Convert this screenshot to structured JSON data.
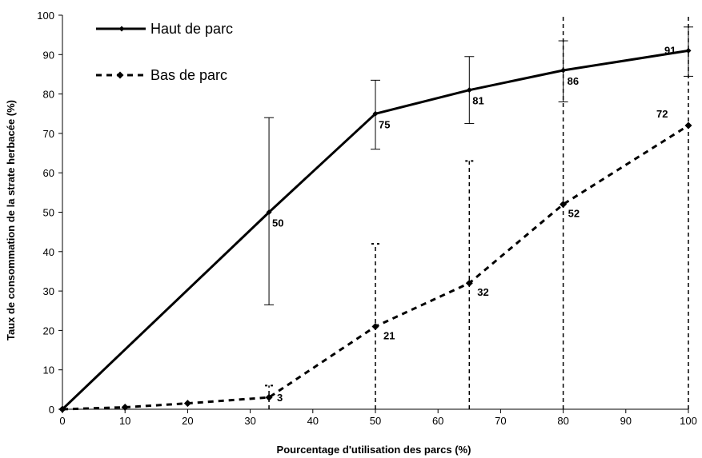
{
  "chart_data": {
    "type": "line",
    "xlabel": "Pourcentage d'utilisation des parcs (%)",
    "ylabel": "Taux de consommation de la strate herbacée (%)",
    "xlim": [
      0,
      100
    ],
    "ylim": [
      0,
      100
    ],
    "xticks": [
      0,
      10,
      20,
      30,
      40,
      50,
      60,
      70,
      80,
      90,
      100
    ],
    "yticks": [
      0,
      10,
      20,
      30,
      40,
      50,
      60,
      70,
      80,
      90,
      100
    ],
    "grid": false,
    "legend_position": "top-left",
    "series": [
      {
        "name": "Haut de parc",
        "style": "solid",
        "color": "#000000",
        "points": [
          {
            "x": 0,
            "y": 0,
            "label": ""
          },
          {
            "x": 33,
            "y": 50,
            "label": "50",
            "err_low": 26.5,
            "err_high": 74
          },
          {
            "x": 50,
            "y": 75,
            "label": "75",
            "err_low": 66,
            "err_high": 83.5
          },
          {
            "x": 65,
            "y": 81,
            "label": "81",
            "err_low": 72.5,
            "err_high": 89.5
          },
          {
            "x": 80,
            "y": 86,
            "label": "86",
            "err_low": 78,
            "err_high": 93.5
          },
          {
            "x": 100,
            "y": 91,
            "label": "91",
            "err_low": 84.5,
            "err_high": 97
          }
        ]
      },
      {
        "name": "Bas de parc",
        "style": "dashed",
        "color": "#000000",
        "points": [
          {
            "x": 0,
            "y": 0,
            "label": ""
          },
          {
            "x": 10,
            "y": 0.5,
            "label": ""
          },
          {
            "x": 20,
            "y": 1.5,
            "label": ""
          },
          {
            "x": 33,
            "y": 3,
            "label": "3",
            "err_low": 0,
            "err_high": 6
          },
          {
            "x": 50,
            "y": 21,
            "label": "21",
            "err_low": 0,
            "err_high": 42
          },
          {
            "x": 65,
            "y": 32,
            "label": "32",
            "err_low": 0,
            "err_high": 63
          },
          {
            "x": 80,
            "y": 52,
            "label": "52",
            "err_low": 0,
            "err_high": 100
          },
          {
            "x": 100,
            "y": 72,
            "label": "72",
            "err_low": 0,
            "err_high": 100
          }
        ]
      }
    ]
  }
}
